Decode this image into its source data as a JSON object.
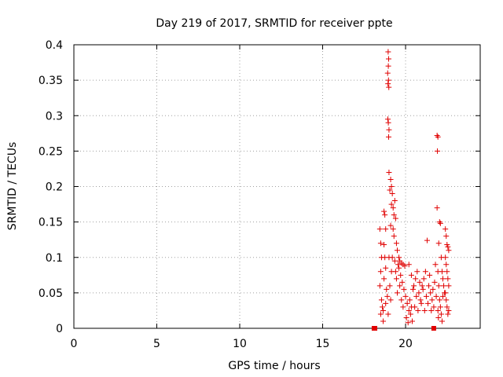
{
  "chart_data": {
    "type": "scatter",
    "title": "Day 219 of 2017, SRMTID for receiver ppte",
    "xlabel": "GPS time / hours",
    "ylabel": "SRMTID / TECUs",
    "xlim": [
      0,
      24.5
    ],
    "ylim": [
      0,
      0.4
    ],
    "grid": true,
    "marker": "+",
    "color": "#e00000",
    "x_ticks": [
      {
        "value": 0,
        "label": "0"
      },
      {
        "value": 5,
        "label": "5"
      },
      {
        "value": 10,
        "label": "10"
      },
      {
        "value": 15,
        "label": "15"
      },
      {
        "value": 20,
        "label": "20"
      }
    ],
    "y_ticks": [
      {
        "value": 0,
        "label": "0"
      },
      {
        "value": 0.05,
        "label": "0.05"
      },
      {
        "value": 0.1,
        "label": "0.1"
      },
      {
        "value": 0.15,
        "label": "0.15"
      },
      {
        "value": 0.2,
        "label": "0.2"
      },
      {
        "value": 0.25,
        "label": "0.25"
      },
      {
        "value": 0.3,
        "label": "0.3"
      },
      {
        "value": 0.35,
        "label": "0.35"
      },
      {
        "value": 0.4,
        "label": "0.4"
      }
    ],
    "series": [
      {
        "name": "SRMTID",
        "points": [
          [
            18.1,
            0.0
          ],
          [
            18.15,
            0.0
          ],
          [
            21.7,
            0.0
          ],
          [
            18.45,
            0.14
          ],
          [
            18.5,
            0.12
          ],
          [
            18.55,
            0.1
          ],
          [
            18.5,
            0.08
          ],
          [
            18.45,
            0.06
          ],
          [
            18.55,
            0.04
          ],
          [
            18.6,
            0.03
          ],
          [
            18.5,
            0.02
          ],
          [
            18.65,
            0.01
          ],
          [
            18.7,
            0.118
          ],
          [
            18.7,
            0.165
          ],
          [
            18.75,
            0.16
          ],
          [
            18.8,
            0.14
          ],
          [
            18.75,
            0.1
          ],
          [
            18.8,
            0.085
          ],
          [
            18.7,
            0.07
          ],
          [
            18.85,
            0.055
          ],
          [
            18.8,
            0.035
          ],
          [
            18.65,
            0.025
          ],
          [
            18.9,
            0.045
          ],
          [
            18.95,
            0.39
          ],
          [
            18.98,
            0.38
          ],
          [
            18.96,
            0.37
          ],
          [
            18.92,
            0.36
          ],
          [
            18.97,
            0.35
          ],
          [
            18.94,
            0.345
          ],
          [
            18.99,
            0.34
          ],
          [
            18.93,
            0.295
          ],
          [
            18.96,
            0.29
          ],
          [
            19.0,
            0.28
          ],
          [
            18.98,
            0.27
          ],
          [
            19.0,
            0.22
          ],
          [
            19.1,
            0.21
          ],
          [
            19.15,
            0.2
          ],
          [
            19.05,
            0.195
          ],
          [
            19.2,
            0.19
          ],
          [
            19.15,
            0.175
          ],
          [
            19.25,
            0.17
          ],
          [
            19.35,
            0.18
          ],
          [
            19.3,
            0.16
          ],
          [
            19.4,
            0.155
          ],
          [
            19.1,
            0.145
          ],
          [
            19.25,
            0.14
          ],
          [
            19.3,
            0.13
          ],
          [
            19.45,
            0.12
          ],
          [
            19.5,
            0.11
          ],
          [
            19.2,
            0.1
          ],
          [
            19.35,
            0.095
          ],
          [
            19.55,
            0.09
          ],
          [
            19.6,
            0.085
          ],
          [
            19.4,
            0.08
          ],
          [
            19.7,
            0.075
          ],
          [
            19.45,
            0.07
          ],
          [
            19.8,
            0.065
          ],
          [
            19.65,
            0.06
          ],
          [
            19.9,
            0.055
          ],
          [
            19.5,
            0.05
          ],
          [
            20.0,
            0.045
          ],
          [
            19.75,
            0.04
          ],
          [
            20.1,
            0.035
          ],
          [
            19.85,
            0.03
          ],
          [
            20.2,
            0.025
          ],
          [
            20.3,
            0.02
          ],
          [
            20.05,
            0.015
          ],
          [
            20.4,
            0.01
          ],
          [
            20.15,
            0.008
          ],
          [
            20.5,
            0.06
          ],
          [
            20.6,
            0.07
          ],
          [
            20.7,
            0.08
          ],
          [
            20.8,
            0.05
          ],
          [
            20.9,
            0.04
          ],
          [
            21.0,
            0.06
          ],
          [
            21.1,
            0.07
          ],
          [
            21.2,
            0.08
          ],
          [
            21.3,
            0.124
          ],
          [
            21.4,
            0.06
          ],
          [
            21.5,
            0.05
          ],
          [
            21.6,
            0.04
          ],
          [
            21.7,
            0.03
          ],
          [
            21.8,
            0.09
          ],
          [
            20.55,
            0.03
          ],
          [
            20.65,
            0.045
          ],
          [
            20.75,
            0.025
          ],
          [
            20.85,
            0.065
          ],
          [
            20.95,
            0.035
          ],
          [
            21.05,
            0.055
          ],
          [
            21.15,
            0.025
          ],
          [
            21.25,
            0.045
          ],
          [
            21.35,
            0.035
          ],
          [
            21.45,
            0.075
          ],
          [
            21.55,
            0.025
          ],
          [
            21.65,
            0.055
          ],
          [
            21.75,
            0.065
          ],
          [
            21.85,
            0.045
          ],
          [
            21.95,
            0.025
          ],
          [
            21.9,
            0.272
          ],
          [
            21.95,
            0.27
          ],
          [
            21.92,
            0.25
          ],
          [
            21.9,
            0.17
          ],
          [
            22.05,
            0.15
          ],
          [
            22.1,
            0.148
          ],
          [
            22.0,
            0.12
          ],
          [
            22.15,
            0.1
          ],
          [
            22.2,
            0.08
          ],
          [
            22.25,
            0.07
          ],
          [
            22.3,
            0.06
          ],
          [
            22.35,
            0.05
          ],
          [
            22.4,
            0.14
          ],
          [
            22.45,
            0.13
          ],
          [
            22.5,
            0.118
          ],
          [
            22.55,
            0.115
          ],
          [
            22.6,
            0.11
          ],
          [
            22.4,
            0.1
          ],
          [
            22.45,
            0.09
          ],
          [
            22.5,
            0.08
          ],
          [
            22.55,
            0.07
          ],
          [
            22.6,
            0.06
          ],
          [
            22.4,
            0.05
          ],
          [
            22.45,
            0.04
          ],
          [
            22.5,
            0.03
          ],
          [
            22.55,
            0.02
          ],
          [
            22.6,
            0.025
          ],
          [
            22.05,
            0.04
          ],
          [
            22.1,
            0.03
          ],
          [
            22.15,
            0.02
          ],
          [
            22.2,
            0.01
          ],
          [
            21.98,
            0.015
          ],
          [
            22.0,
            0.06
          ],
          [
            21.95,
            0.08
          ],
          [
            22.25,
            0.045
          ],
          [
            19.0,
            0.1
          ],
          [
            19.05,
            0.06
          ],
          [
            19.1,
            0.04
          ],
          [
            18.95,
            0.02
          ],
          [
            19.15,
            0.08
          ],
          [
            19.6,
            0.1
          ],
          [
            19.65,
            0.095
          ],
          [
            19.75,
            0.092
          ],
          [
            19.85,
            0.09
          ],
          [
            19.95,
            0.088
          ],
          [
            20.2,
            0.09
          ],
          [
            20.35,
            0.075
          ],
          [
            20.45,
            0.055
          ],
          [
            20.25,
            0.04
          ],
          [
            20.35,
            0.03
          ]
        ]
      }
    ]
  }
}
